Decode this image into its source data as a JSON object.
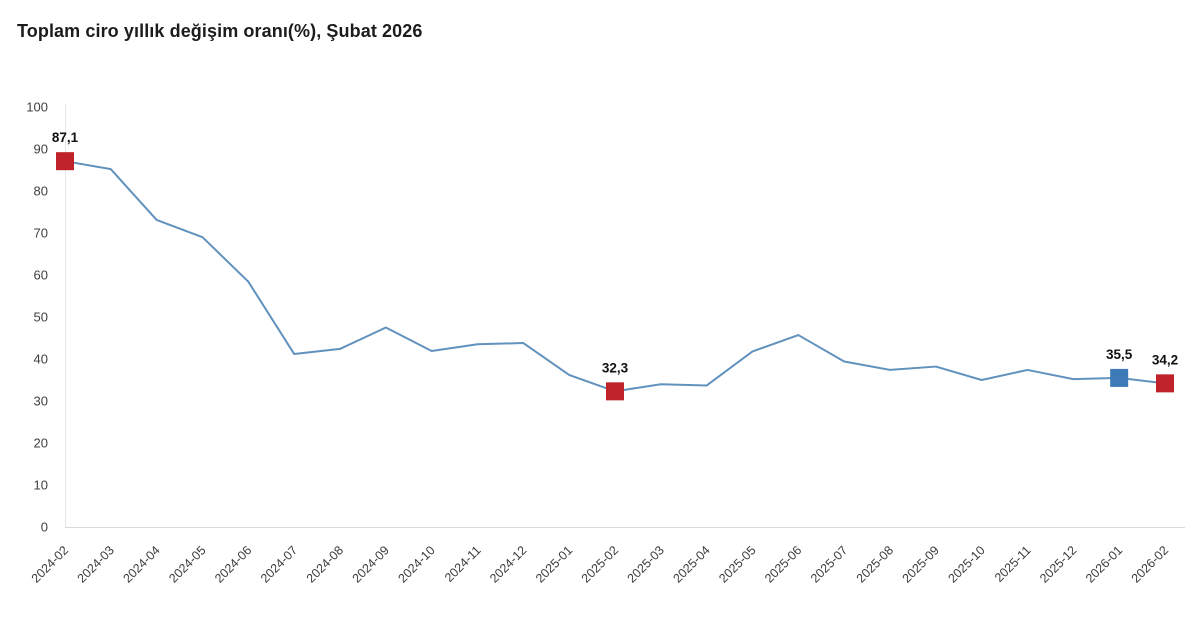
{
  "chart_data": {
    "type": "line",
    "title": "Toplam ciro yıllık değişim oranı(%), Şubat 2026",
    "categories": [
      "2024-02",
      "2024-03",
      "2024-04",
      "2024-05",
      "2024-06",
      "2024-07",
      "2024-08",
      "2024-09",
      "2024-10",
      "2024-11",
      "2024-12",
      "2025-01",
      "2025-02",
      "2025-03",
      "2025-04",
      "2025-05",
      "2025-06",
      "2025-07",
      "2025-08",
      "2025-09",
      "2025-10",
      "2025-11",
      "2025-12",
      "2026-01",
      "2026-02"
    ],
    "values": [
      87.1,
      85.2,
      73.1,
      69.0,
      58.4,
      41.2,
      42.4,
      47.5,
      41.9,
      43.5,
      43.8,
      36.2,
      32.3,
      34.0,
      33.7,
      41.8,
      45.7,
      39.4,
      37.4,
      38.2,
      35.0,
      37.4,
      35.2,
      35.5,
      34.2
    ],
    "highlighted_points": [
      {
        "category": "2024-02",
        "value": 87.1,
        "label": "87,1",
        "color": "#bf2228"
      },
      {
        "category": "2025-02",
        "value": 32.3,
        "label": "32,3",
        "color": "#bf2228"
      },
      {
        "category": "2026-01",
        "value": 35.5,
        "label": "35,5",
        "color": "#3e7ab5"
      },
      {
        "category": "2026-02",
        "value": 34.2,
        "label": "34,2",
        "color": "#bf2228"
      }
    ],
    "yticks": [
      0,
      10,
      20,
      30,
      40,
      50,
      60,
      70,
      80,
      90,
      100
    ],
    "ylim": [
      0,
      100
    ],
    "xlabel": "",
    "ylabel": "",
    "x_label_rotation": -45,
    "grid": false,
    "legend": false,
    "line_color": "#6191bd",
    "axis_line_color": "#d9d9d9",
    "first_category_line_color": "#e7e7e7"
  }
}
